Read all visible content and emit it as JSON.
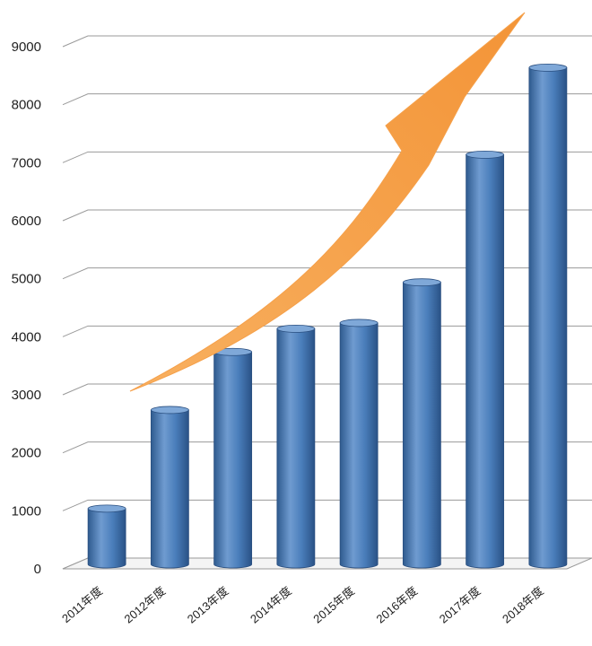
{
  "chart_data": {
    "type": "bar",
    "title": "",
    "xlabel": "",
    "ylabel": "",
    "categories": [
      "2011年度",
      "2012年度",
      "2013年度",
      "2014年度",
      "2015年度",
      "2016年度",
      "2017年度",
      "2018年度"
    ],
    "values": [
      1100,
      2800,
      3800,
      4200,
      4300,
      5000,
      7200,
      8700
    ],
    "ylim": [
      0,
      9000
    ],
    "yticks": [
      "0",
      "1000",
      "2000",
      "3000",
      "4000",
      "5000",
      "6000",
      "7000",
      "8000",
      "9000"
    ],
    "grid": true,
    "legend": "none",
    "colors": {
      "bar": "#4a7ebb",
      "bar_dark": "#2f5b8f",
      "bar_light": "#7fa8d8",
      "arrow": "#f5a04a",
      "grid": "#9a9a9a"
    },
    "annotations": [
      "orange upward trend arrow"
    ]
  }
}
